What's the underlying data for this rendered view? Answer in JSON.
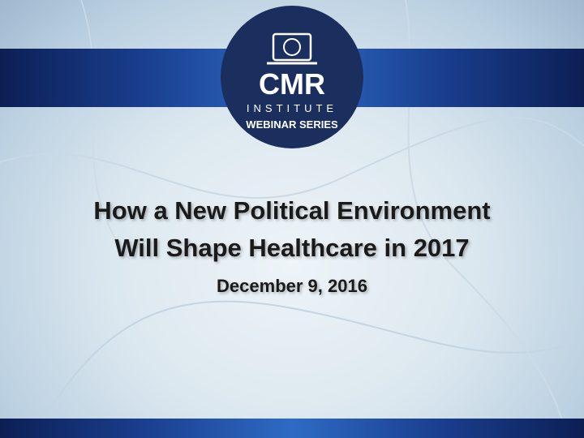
{
  "logo": {
    "name": "CMR",
    "line1": "INSTITUTE",
    "line2": "WEBINAR SERIES"
  },
  "slide": {
    "title_line1": "How a New Political Environment",
    "title_line2": "Will Shape Healthcare in 2017",
    "date": "December 9, 2016"
  }
}
